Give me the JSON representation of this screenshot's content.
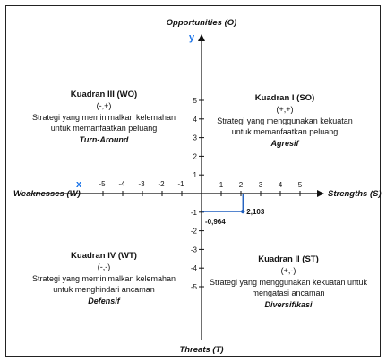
{
  "axes": {
    "top": "Opportunities (O)",
    "bottom": "Threats (T)",
    "left": "Weaknesses (W)",
    "right": "Strengths (S)",
    "x_symbol": "x",
    "y_symbol": "y",
    "x_ticks": [
      "-5",
      "-4",
      "-3",
      "-2",
      "-1",
      "1",
      "2",
      "3",
      "4",
      "5"
    ],
    "y_ticks": [
      "5",
      "4",
      "3",
      "2",
      "1",
      "-1",
      "-2",
      "-3",
      "-4",
      "-5"
    ],
    "axis_color": "#111111",
    "symbol_color": "#1a73e8"
  },
  "quadrants": {
    "q1": {
      "title": "Kuadran I (SO)",
      "sign": "(+,+)",
      "line1": "Strategi yang menggunakan  kekuatan",
      "line2": "untuk memanfaatkan peluang",
      "strategy": "Agresif"
    },
    "q2": {
      "title": "Kuadran II (ST)",
      "sign": "(+,-)",
      "line1": "Strategi yang menggunakan  kekuatan untuk",
      "line2": "mengatasi ancaman",
      "strategy": "Diversifikasi"
    },
    "q3": {
      "title": "Kuadran III (WO)",
      "sign": "(-,+)",
      "line1": "Strategi yang meminimalkan  kelemahan",
      "line2": "untuk memanfaatkan peluang",
      "strategy": "Turn-Around"
    },
    "q4": {
      "title": "Kuadran IV (WT)",
      "sign": "(-,-)",
      "line1": "Strategi yang meminimalkan  kelemahan",
      "line2": "untuk menghindari ancaman",
      "strategy": "Defensif"
    }
  },
  "point": {
    "x": 2.103,
    "y": -0.964,
    "x_label": "2,103",
    "y_label": "-0,964",
    "color": "#1f5fbf"
  }
}
